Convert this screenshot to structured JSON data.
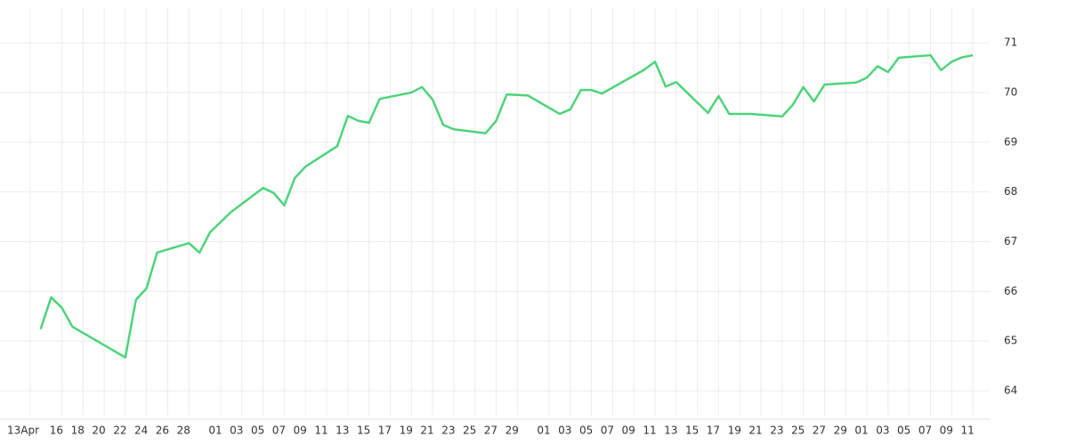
{
  "chart_data": {
    "type": "line",
    "x": [
      "04-14",
      "04-15",
      "04-16",
      "04-17",
      "04-22",
      "04-23",
      "04-24",
      "04-25",
      "04-28",
      "04-29",
      "04-30",
      "05-02",
      "05-05",
      "05-06",
      "05-07",
      "05-08",
      "05-09",
      "05-12",
      "05-13",
      "05-14",
      "05-15",
      "05-16",
      "05-19",
      "05-20",
      "05-21",
      "05-22",
      "05-23",
      "05-26",
      "05-27",
      "05-28",
      "05-30",
      "06-02",
      "06-03",
      "06-04",
      "06-05",
      "06-06",
      "06-10",
      "06-11",
      "06-12",
      "06-13",
      "06-16",
      "06-17",
      "06-18",
      "06-20",
      "06-23",
      "06-24",
      "06-25",
      "06-26",
      "06-27",
      "06-30",
      "07-01",
      "07-02",
      "07-03",
      "07-04",
      "07-07",
      "07-08",
      "07-09",
      "07-10",
      "07-11"
    ],
    "series": [
      {
        "color": "#4cd47a",
        "values": [
          65.24,
          65.88,
          65.67,
          65.29,
          64.67,
          65.83,
          66.06,
          66.78,
          66.97,
          66.78,
          67.19,
          67.6,
          68.08,
          67.98,
          67.73,
          68.28,
          68.51,
          68.92,
          69.53,
          69.43,
          69.39,
          69.87,
          70.0,
          70.11,
          69.86,
          69.35,
          69.26,
          69.18,
          69.43,
          69.96,
          69.94,
          69.57,
          69.66,
          70.05,
          70.05,
          69.98,
          70.46,
          70.62,
          70.12,
          70.21,
          69.59,
          69.93,
          69.57,
          69.57,
          69.52,
          69.75,
          70.11,
          69.82,
          70.16,
          70.2,
          70.3,
          70.53,
          70.41,
          70.7,
          70.75,
          70.45,
          70.62,
          70.71,
          70.75
        ]
      }
    ],
    "xlim": [
      "04-10",
      "07-12"
    ],
    "xticks": [
      {
        "value": "04-13",
        "label": "13Apr"
      },
      {
        "value": "04-16",
        "label": "16"
      },
      {
        "value": "04-18",
        "label": "18"
      },
      {
        "value": "04-20",
        "label": "20"
      },
      {
        "value": "04-22",
        "label": "22"
      },
      {
        "value": "04-24",
        "label": "24"
      },
      {
        "value": "04-26",
        "label": "26"
      },
      {
        "value": "04-28",
        "label": "28"
      },
      {
        "value": "05-01",
        "label": "01"
      },
      {
        "value": "05-03",
        "label": "03"
      },
      {
        "value": "05-05",
        "label": "05"
      },
      {
        "value": "05-07",
        "label": "07"
      },
      {
        "value": "05-09",
        "label": "09"
      },
      {
        "value": "05-11",
        "label": "11"
      },
      {
        "value": "05-13",
        "label": "13"
      },
      {
        "value": "05-15",
        "label": "15"
      },
      {
        "value": "05-17",
        "label": "17"
      },
      {
        "value": "05-19",
        "label": "19"
      },
      {
        "value": "05-21",
        "label": "21"
      },
      {
        "value": "05-23",
        "label": "23"
      },
      {
        "value": "05-25",
        "label": "25"
      },
      {
        "value": "05-27",
        "label": "27"
      },
      {
        "value": "05-29",
        "label": "29"
      },
      {
        "value": "06-01",
        "label": "01"
      },
      {
        "value": "06-03",
        "label": "03"
      },
      {
        "value": "06-05",
        "label": "05"
      },
      {
        "value": "06-07",
        "label": "07"
      },
      {
        "value": "06-09",
        "label": "09"
      },
      {
        "value": "06-11",
        "label": "11"
      },
      {
        "value": "06-13",
        "label": "13"
      },
      {
        "value": "06-15",
        "label": "15"
      },
      {
        "value": "06-17",
        "label": "17"
      },
      {
        "value": "06-19",
        "label": "19"
      },
      {
        "value": "06-21",
        "label": "21"
      },
      {
        "value": "06-23",
        "label": "23"
      },
      {
        "value": "06-25",
        "label": "25"
      },
      {
        "value": "06-27",
        "label": "27"
      },
      {
        "value": "06-29",
        "label": "29"
      },
      {
        "value": "07-01",
        "label": "01"
      },
      {
        "value": "07-03",
        "label": "03"
      },
      {
        "value": "07-05",
        "label": "05"
      },
      {
        "value": "07-07",
        "label": "07"
      },
      {
        "value": "07-09",
        "label": "09"
      },
      {
        "value": "07-11",
        "label": "11"
      }
    ],
    "ylim": [
      63.5,
      71.7
    ],
    "yticks": [
      64,
      65,
      66,
      67,
      68,
      69,
      70,
      71
    ],
    "grid": true
  }
}
